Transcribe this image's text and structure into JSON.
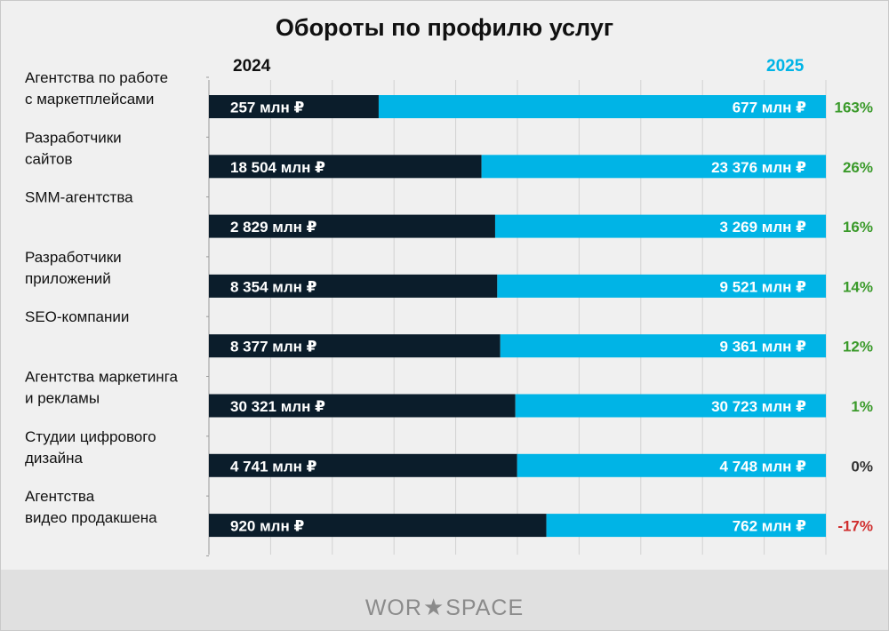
{
  "chart_data": {
    "type": "bar",
    "title": "Обороты по профилю услуг",
    "series": [
      {
        "name": "2024",
        "color": "#0b1d2b",
        "labels": [
          "257 млн ₽",
          "18 504 млн ₽",
          "2 829 млн ₽",
          "8 354 млн ₽",
          "8 377 млн ₽",
          "30 321 млн ₽",
          "4 741 млн ₽",
          "920 млн ₽"
        ]
      },
      {
        "name": "2025",
        "color": "#00b4e6",
        "labels": [
          "677 млн ₽",
          "23 376 млн ₽",
          "3 269 млн ₽",
          "9 521 млн ₽",
          "9 361 млн ₽",
          "30 723 млн ₽",
          "4 748 млн ₽",
          "762 млн ₽"
        ]
      }
    ],
    "categories": [
      [
        "Агентства по работе",
        "с маркетплейсами"
      ],
      [
        "Разработчики",
        "сайтов"
      ],
      [
        "SMM-агентства"
      ],
      [
        "Разработчики",
        "приложений"
      ],
      [
        "SEO-компании"
      ],
      [
        "Агентства маркетинга",
        "и рекламы"
      ],
      [
        "Студии цифрового",
        "дизайна"
      ],
      [
        "Агентства",
        "видео продакшена"
      ]
    ],
    "values_2024": [
      257,
      18504,
      2829,
      8354,
      8377,
      30321,
      4741,
      920
    ],
    "values_2025": [
      677,
      23376,
      3269,
      9521,
      9361,
      30723,
      4748,
      762
    ],
    "changes": [
      "163%",
      "26%",
      "16%",
      "14%",
      "12%",
      "1%",
      "0%",
      "-17%"
    ],
    "change_colors": {
      "positive": "#3a9a2a",
      "zero": "#333333",
      "negative": "#d02e2e"
    }
  },
  "footer": {
    "logo_left": "WOR",
    "logo_right": "SPACE",
    "logo_star": "★"
  }
}
